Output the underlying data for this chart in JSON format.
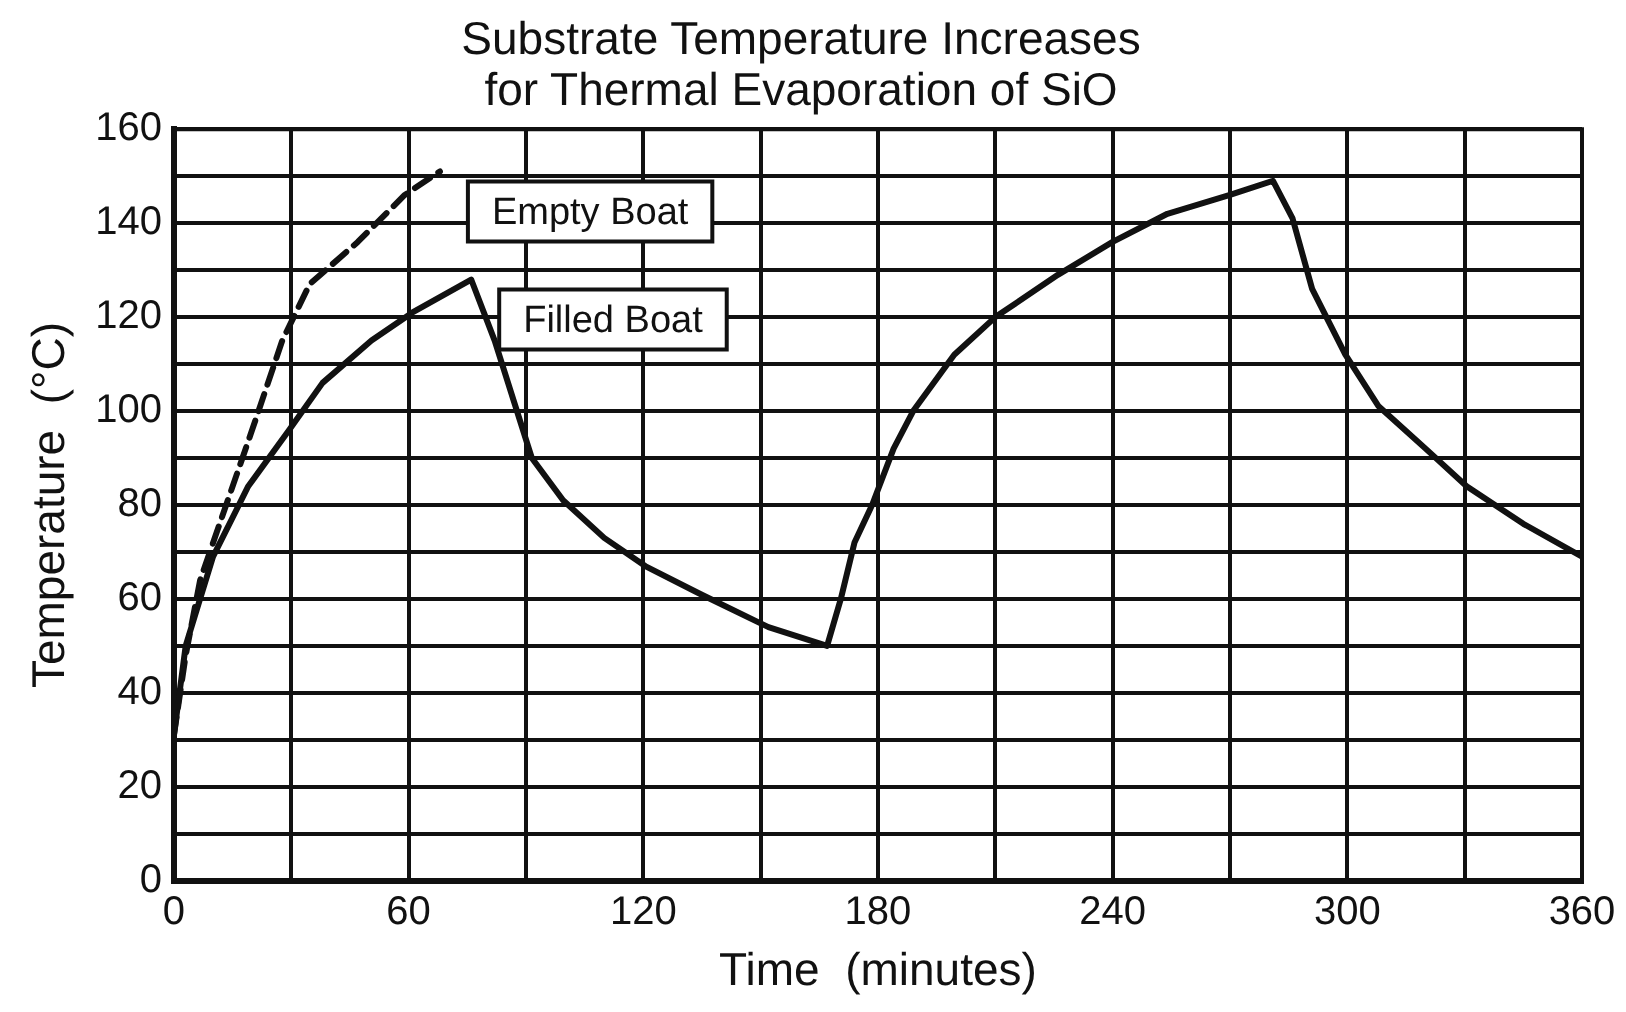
{
  "chart_data": {
    "type": "line",
    "title": "Substrate Temperature Increases for Thermal Evaporation of SiO",
    "xlabel": "Time  (minutes)",
    "ylabel": "Temperature  (°C)",
    "xlim": [
      0,
      360
    ],
    "xticks": [
      0,
      {
        "value": 30,
        "label": null
      },
      60,
      {
        "value": 90,
        "label": null
      },
      120,
      {
        "value": 150,
        "label": null
      },
      180,
      {
        "value": 210,
        "label": null
      },
      240,
      {
        "value": 270,
        "label": null
      },
      300,
      {
        "value": 330,
        "label": null
      },
      360
    ],
    "ylim": [
      0,
      160
    ],
    "yticks": [
      0,
      {
        "value": 10,
        "label": null
      },
      20,
      {
        "value": 30,
        "label": null
      },
      40,
      {
        "value": 50,
        "label": null
      },
      60,
      {
        "value": 70,
        "label": null
      },
      80,
      {
        "value": 90,
        "label": null
      },
      100,
      {
        "value": 110,
        "label": null
      },
      120,
      {
        "value": 130,
        "label": null
      },
      140,
      {
        "value": 150,
        "label": null
      },
      160
    ],
    "grid": true,
    "legend": false,
    "marker": "none",
    "series": [
      {
        "name": "Empty Boat",
        "color": "#111111",
        "line_style": "dashed",
        "x": [
          0,
          3,
          6.7,
          14.6,
          20,
          27.7,
          34.7,
          47,
          59,
          68
        ],
        "values": [
          31,
          48,
          64,
          83,
          96,
          115,
          127,
          136,
          146,
          151
        ]
      },
      {
        "name": "Filled Boat",
        "color": "#111111",
        "line_style": "solid",
        "x": [
          0,
          3,
          10,
          19,
          29.5,
          38,
          50.5,
          61,
          76,
          82,
          91.5,
          99.5,
          110,
          120.5,
          134.7,
          152,
          167,
          170.5,
          174,
          178.5,
          184,
          189,
          199.5,
          210,
          226,
          240,
          254,
          270,
          281,
          286,
          291,
          299.5,
          308,
          320,
          330.5,
          345,
          360
        ],
        "values": [
          31,
          50,
          69,
          84,
          96,
          106,
          115,
          121,
          128,
          115,
          90,
          81,
          73,
          67,
          61,
          54,
          50,
          60,
          72,
          80,
          92,
          100,
          112,
          120,
          129,
          136,
          142,
          146,
          149,
          141,
          126,
          112,
          101,
          92,
          84,
          76,
          69
        ]
      }
    ]
  }
}
